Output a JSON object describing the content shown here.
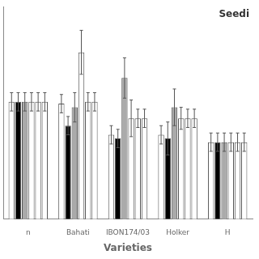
{
  "chart_data": {
    "type": "bar",
    "categories": [
      "n",
      "Bahati",
      "IBON174/03",
      "Holker",
      "H"
    ],
    "series": [
      {
        "color": "white",
        "values": [
          3.2,
          3.15,
          2.3,
          2.3,
          2.1
        ],
        "errors": [
          0.25,
          0.25,
          0.25,
          0.25,
          0.25
        ]
      },
      {
        "color": "black",
        "values": [
          3.2,
          2.55,
          2.2,
          2.2,
          2.1
        ],
        "errors": [
          0.25,
          0.25,
          0.25,
          0.45,
          0.25
        ]
      },
      {
        "color": "#aaaaaa",
        "values": [
          3.2,
          3.05,
          3.85,
          3.05,
          2.1
        ],
        "errors": [
          0.25,
          0.4,
          0.55,
          0.5,
          0.25
        ]
      },
      {
        "color": "white",
        "values": [
          3.2,
          4.55,
          2.75,
          2.75,
          2.1
        ],
        "errors": [
          0.25,
          0.6,
          0.5,
          0.3,
          0.25
        ]
      },
      {
        "color": "white",
        "values": [
          3.2,
          3.2,
          2.75,
          2.75,
          2.1
        ],
        "errors": [
          0.25,
          0.25,
          0.25,
          0.25,
          0.25
        ]
      },
      {
        "color": "white",
        "values": [
          3.2,
          3.2,
          2.75,
          2.75,
          2.1
        ],
        "errors": [
          0.25,
          0.25,
          0.25,
          0.25,
          0.25
        ]
      }
    ],
    "xlabel": "Varieties",
    "annotations": [
      "Seedi"
    ],
    "ylim": [
      0,
      5.8
    ],
    "grid": false,
    "tick_labels": "x"
  }
}
